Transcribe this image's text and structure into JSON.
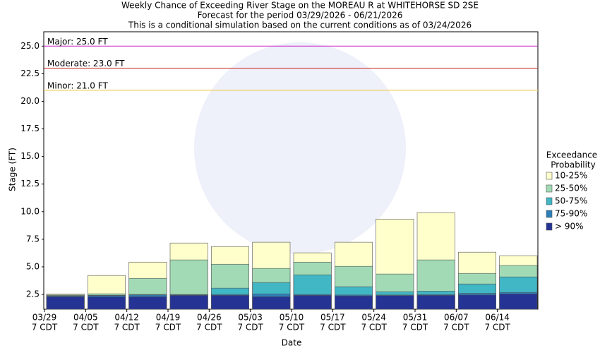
{
  "chart_data": {
    "type": "bar",
    "title": [
      "Weekly Chance of Exceeding River Stage on the MOREAU R at WHITEHORSE SD 2SE",
      "Forecast for the period 03/29/2026 - 06/21/2026",
      "This is a conditional simulation based on the current conditions as of 03/24/2026"
    ],
    "x_label": "Date",
    "y_label": "Stage (FT)",
    "categories": [
      [
        "03/29",
        "7 CDT"
      ],
      [
        "04/05",
        "7 CDT"
      ],
      [
        "04/12",
        "7 CDT"
      ],
      [
        "04/19",
        "7 CDT"
      ],
      [
        "04/26",
        "7 CDT"
      ],
      [
        "05/03",
        "7 CDT"
      ],
      [
        "05/10",
        "7 CDT"
      ],
      [
        "05/17",
        "7 CDT"
      ],
      [
        "05/24",
        "7 CDT"
      ],
      [
        "05/31",
        "7 CDT"
      ],
      [
        "06/07",
        "7 CDT"
      ],
      [
        "06/14",
        "7 CDT"
      ]
    ],
    "ylim": [
      1.16,
      26.3
    ],
    "yticks": [
      2.5,
      {
        "value": 5,
        "label": "5.0"
      },
      7.5,
      {
        "value": 10,
        "label": "10.0"
      },
      12.5,
      {
        "value": 15,
        "label": "15.0"
      },
      17.5,
      {
        "value": 20,
        "label": "20.0"
      },
      22.5,
      {
        "value": 25,
        "label": "25.0"
      }
    ],
    "legend_title": [
      "Exceedance",
      "Probability"
    ],
    "series": [
      {
        "name": "10-25%",
        "color": "#ffffcc",
        "values": [
          2.55,
          4.22,
          5.43,
          7.16,
          6.84,
          7.23,
          6.27,
          7.23,
          9.33,
          9.91,
          6.33,
          6.01
        ]
      },
      {
        "name": "25-50%",
        "color": "#a1dab4",
        "values": [
          2.45,
          2.56,
          3.96,
          5.63,
          5.24,
          4.86,
          5.43,
          5.05,
          4.35,
          5.63,
          4.41,
          5.12
        ]
      },
      {
        "name": "50-75%",
        "color": "#41b6c4",
        "values": [
          2.4,
          2.43,
          2.5,
          2.5,
          3.07,
          3.58,
          4.28,
          3.2,
          2.75,
          2.8,
          3.45,
          4.09
        ]
      },
      {
        "name": "75-90%",
        "color": "#2c7fb8",
        "values": [
          2.35,
          2.4,
          2.45,
          2.45,
          2.5,
          2.55,
          2.5,
          2.45,
          2.45,
          2.5,
          2.6,
          2.68
        ]
      },
      {
        "name": "> 90%",
        "color": "#253494",
        "values": [
          2.3,
          2.3,
          2.3,
          2.42,
          2.42,
          2.3,
          2.42,
          2.37,
          2.4,
          2.42,
          2.45,
          2.55
        ]
      }
    ],
    "thresholds": [
      {
        "label": "Major: 25.0 FT",
        "value": 25,
        "color": "#cc33cc"
      },
      {
        "label": "Moderate: 23.0 FT",
        "value": 23,
        "color": "#cc3333"
      },
      {
        "label": "Minor: 21.0 FT",
        "value": 21,
        "color": "#f0d060"
      }
    ]
  }
}
